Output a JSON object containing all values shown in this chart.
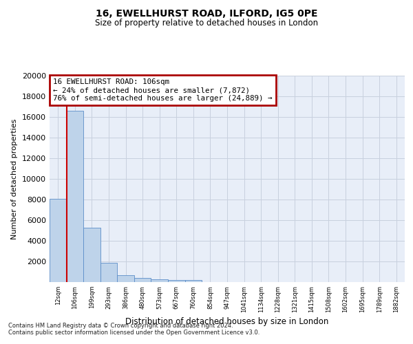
{
  "title1": "16, EWELLHURST ROAD, ILFORD, IG5 0PE",
  "title2": "Size of property relative to detached houses in London",
  "xlabel": "Distribution of detached houses by size in London",
  "ylabel": "Number of detached properties",
  "categories": [
    "12sqm",
    "106sqm",
    "199sqm",
    "293sqm",
    "386sqm",
    "480sqm",
    "573sqm",
    "667sqm",
    "760sqm",
    "854sqm",
    "947sqm",
    "1041sqm",
    "1134sqm",
    "1228sqm",
    "1321sqm",
    "1415sqm",
    "1508sqm",
    "1602sqm",
    "1695sqm",
    "1789sqm",
    "1882sqm"
  ],
  "bar_heights": [
    8100,
    16600,
    5300,
    1850,
    700,
    380,
    280,
    220,
    190,
    0,
    0,
    0,
    0,
    0,
    0,
    0,
    0,
    0,
    0,
    0,
    0
  ],
  "bar_color": "#bed3ea",
  "bar_edge_color": "#5b8dc8",
  "annotation_title": "16 EWELLHURST ROAD: 106sqm",
  "annotation_line1": "← 24% of detached houses are smaller (7,872)",
  "annotation_line2": "76% of semi-detached houses are larger (24,889) →",
  "annotation_box_facecolor": "#ffffff",
  "annotation_box_edgecolor": "#aa0000",
  "grid_color": "#c8d0de",
  "background_color": "#e8eef8",
  "ylim": [
    0,
    20000
  ],
  "yticks": [
    0,
    2000,
    4000,
    6000,
    8000,
    10000,
    12000,
    14000,
    16000,
    18000,
    20000
  ],
  "footnote1": "Contains HM Land Registry data © Crown copyright and database right 2024.",
  "footnote2": "Contains public sector information licensed under the Open Government Licence v3.0.",
  "property_bar_index": 1,
  "red_line_color": "#cc0000"
}
